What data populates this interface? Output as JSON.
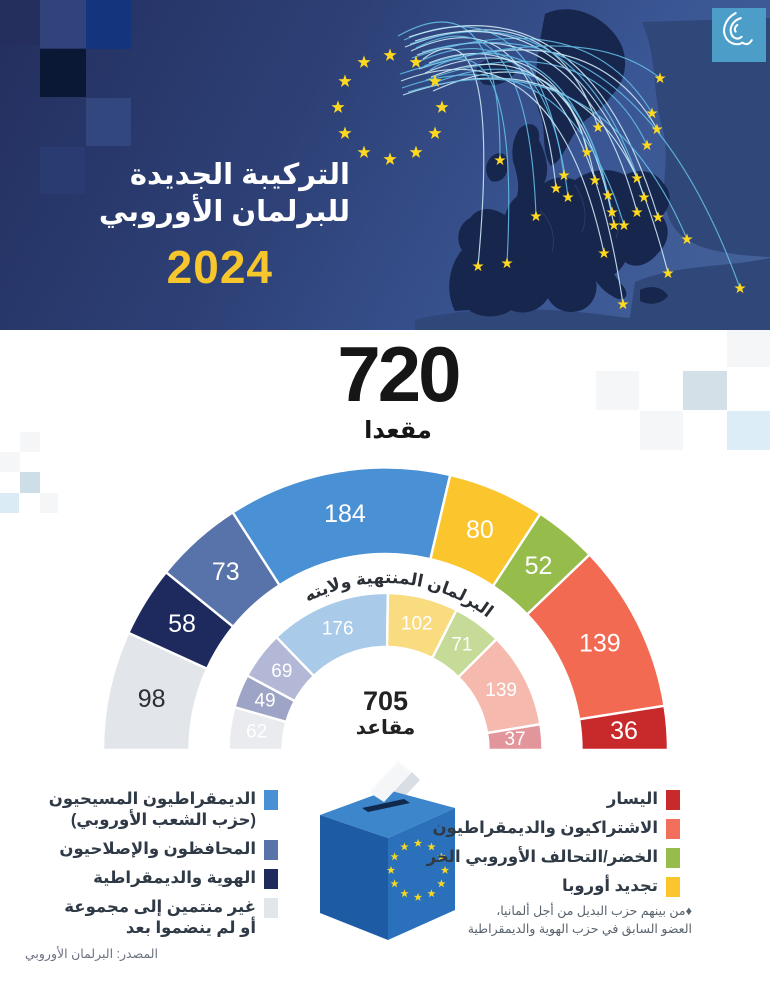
{
  "header": {
    "title_line1": "التركيبة الجديدة",
    "title_line2": "للبرلمان الأوروبي",
    "year": "2024",
    "logo_name": "al-jazeera"
  },
  "totals": {
    "new_value": "720",
    "new_unit": "مقعدا",
    "old_value": "705",
    "old_unit": "مقاعد"
  },
  "chart_data": {
    "type": "hemicycle",
    "title": "التركيبة الجديدة للبرلمان الأوروبي 2024",
    "band_label": "البرلمان المنتهية ولايته",
    "outer_ring": {
      "name": "2024",
      "total": 720,
      "segments": [
        {
          "name": "غير منتمين إلى مجموعة أو لم ينضموا بعد",
          "value": 98,
          "color": "#e2e6ea",
          "label_color": "#2b2f36"
        },
        {
          "name": "الهوية والديمقراطية",
          "value": 58,
          "color": "#1e2a5e",
          "label_color": "#ffffff"
        },
        {
          "name": "المحافظون والإصلاحيون",
          "value": 73,
          "color": "#5872aa",
          "label_color": "#ffffff"
        },
        {
          "name": "الديمقراطيون المسيحيون (حزب الشعب الأوروبي)",
          "value": 184,
          "color": "#4a90d5",
          "label_color": "#ffffff"
        },
        {
          "name": "تجديد أوروبا",
          "value": 80,
          "color": "#fbc52d",
          "label_color": "#ffffff"
        },
        {
          "name": "الخضر/التحالف الأوروبي الحر",
          "value": 52,
          "color": "#96bd4b",
          "label_color": "#ffffff"
        },
        {
          "name": "الاشتراكيون والديمقراطيون",
          "value": 139,
          "color": "#f26a52",
          "label_color": "#ffffff"
        },
        {
          "name": "اليسار",
          "value": 36,
          "color": "#c8292b",
          "label_color": "#ffffff"
        }
      ]
    },
    "inner_ring": {
      "name": "البرلمان المنتهية ولايته",
      "total": 705,
      "segments": [
        {
          "name": "غير منتمين إلى مجموعة",
          "value": 62,
          "color": "#e9ebef",
          "label_color": "#ffffff"
        },
        {
          "name": "الهوية والديمقراطية",
          "value": 49,
          "color": "#9da4c6",
          "label_color": "#ffffff"
        },
        {
          "name": "المحافظون والإصلاحيون",
          "value": 69,
          "color": "#b2b8d5",
          "label_color": "#ffffff"
        },
        {
          "name": "الديمقراطيون المسيحيون",
          "value": 176,
          "color": "#a9cbe9",
          "label_color": "#ffffff"
        },
        {
          "name": "تجديد أوروبا",
          "value": 102,
          "color": "#fadc80",
          "label_color": "#ffffff"
        },
        {
          "name": "الخضر",
          "value": 71,
          "color": "#c5db97",
          "label_color": "#ffffff"
        },
        {
          "name": "الاشتراكيون والديمقراطيون",
          "value": 139,
          "color": "#f5b9ae",
          "label_color": "#ffffff"
        },
        {
          "name": "اليسار",
          "value": 37,
          "color": "#e2969c",
          "label_color": "#ffffff"
        }
      ]
    }
  },
  "legend": {
    "left": [
      {
        "lines": [
          "الديمقراطيون المسيحيون",
          "(حزب الشعب الأوروبي)"
        ],
        "color": "#4a90d5"
      },
      {
        "lines": [
          "المحافظون والإصلاحيون"
        ],
        "color": "#5872aa"
      },
      {
        "lines": [
          "الهوية والديمقراطية"
        ],
        "color": "#1e2a5e"
      },
      {
        "lines": [
          "غير منتمين إلى مجموعة",
          "أو لم ينضموا بعد"
        ],
        "color": "#e2e6ea"
      }
    ],
    "right": [
      {
        "lines": [
          "اليسار"
        ],
        "color": "#c8292b"
      },
      {
        "lines": [
          "الاشتراكيون والديمقراطيون"
        ],
        "color": "#f2705b"
      },
      {
        "lines": [
          "الخضر/التحالف الأوروبي الحر"
        ],
        "color": "#96bd4b"
      },
      {
        "lines": [
          "تجديد أوروبا"
        ],
        "color": "#fbc52d"
      }
    ],
    "footnote_line1": "♦من بينهم حزب البديل من أجل ألمانيا،",
    "footnote_line2": "العضو السابق في حزب الهوية والديمقراطية"
  },
  "source": "المصدر: البرلمان الأوروبي",
  "colors": {
    "accent_yellow": "#f6c62c",
    "star_yellow": "#ffd91f",
    "header_navy": "#2d4076",
    "map_dark": "#17264d",
    "map_light": "#30477a"
  }
}
